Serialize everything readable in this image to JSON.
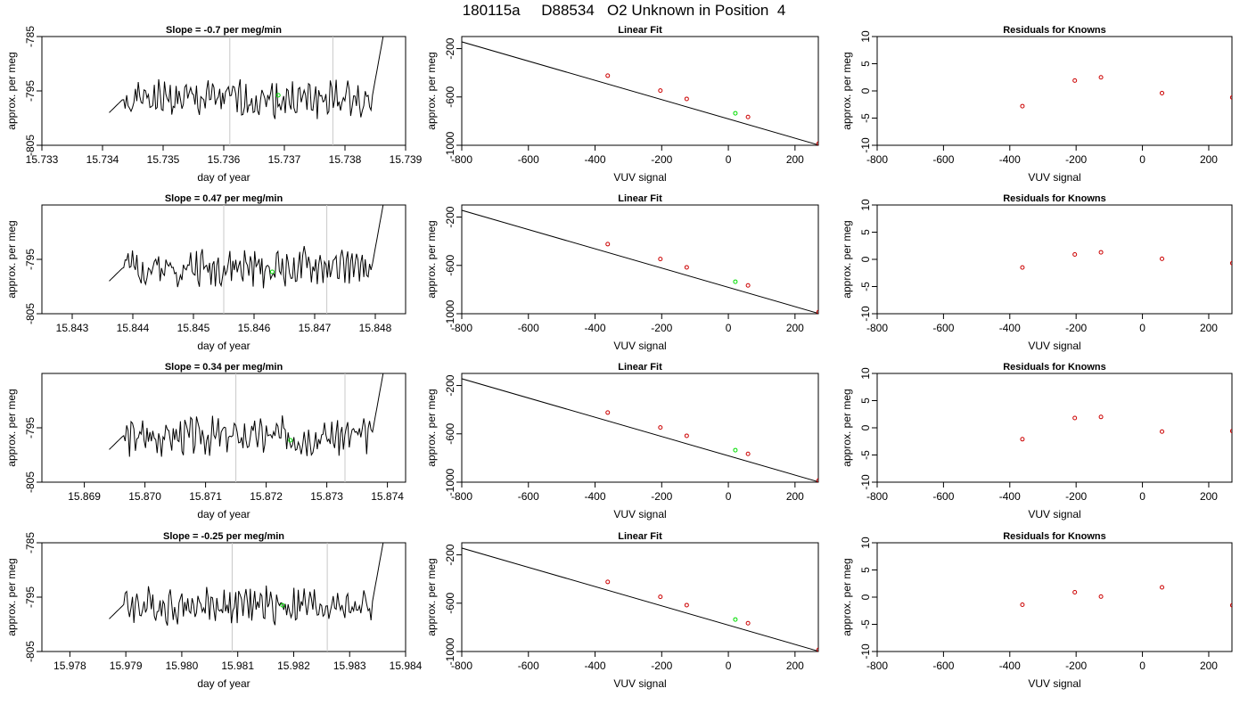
{
  "figure_title": "180115a     D88534   O2 Unknown in Position  4",
  "colors": {
    "line": "#000000",
    "vline": "#c8c8c8",
    "unknown": "#00dd00",
    "known": "#cc0000"
  },
  "chart_data": [
    {
      "type": "line",
      "title": "Slope =  -0.7  per meg/min",
      "xlabel": "day of year",
      "ylabel": "approx. per meg",
      "xlim": [
        15.733,
        15.739
      ],
      "ylim": [
        -805,
        -785
      ],
      "xticks": [
        "15.733",
        "15.734",
        "15.735",
        "15.736",
        "15.737",
        "15.738",
        "15.739"
      ],
      "yticks": [
        "-785",
        "-795",
        "-805"
      ],
      "vlines": [
        15.7361,
        15.7378
      ],
      "unknown_point": [
        15.7369,
        -795.8
      ],
      "seed": 1
    },
    {
      "type": "scatter",
      "title": "Linear Fit",
      "xlabel": "VUV signal",
      "ylabel": "approx. per meg",
      "xlim": [
        -800,
        270
      ],
      "ylim": [
        -1000,
        -100
      ],
      "xticks": [
        "-800",
        "-600",
        "-400",
        "-200",
        "0",
        "200"
      ],
      "yticks": [
        "-200",
        "-600",
        "-1000"
      ],
      "fit_line": [
        [
          -820,
          -128
        ],
        [
          270,
          -997
        ]
      ],
      "knowns": [
        [
          -362,
          -424
        ],
        [
          -204,
          -547
        ],
        [
          -125,
          -616
        ],
        [
          59,
          -766
        ],
        [
          271,
          -985
        ]
      ],
      "unknown": [
        [
          21,
          -735
        ]
      ]
    },
    {
      "type": "scatter",
      "title": "Residuals for Knowns",
      "xlabel": "VUV signal",
      "ylabel": "approx. per meg",
      "xlim": [
        -800,
        270
      ],
      "ylim": [
        -10,
        10
      ],
      "xticks": [
        "-800",
        "-600",
        "-400",
        "-200",
        "0",
        "200"
      ],
      "yticks": [
        "-10",
        "-5",
        "0",
        "5",
        "10"
      ],
      "knowns": [
        [
          -362,
          -2.8
        ],
        [
          -204,
          1.9
        ],
        [
          -125,
          2.5
        ],
        [
          59,
          -0.4
        ],
        [
          271,
          -1.2
        ]
      ]
    },
    {
      "type": "line",
      "title": "Slope =  0.47  per meg/min",
      "xlabel": "day of year",
      "ylabel": "approx. per meg",
      "xlim": [
        15.8425,
        15.8485
      ],
      "ylim": [
        -805,
        -785
      ],
      "xticks": [
        "15.843",
        "15.844",
        "15.845",
        "15.846",
        "15.847",
        "15.848"
      ],
      "yticks": [
        "-795",
        "-805"
      ],
      "vlines": [
        15.8455,
        15.8472
      ],
      "unknown_point": [
        15.8463,
        -797.3
      ],
      "seed": 2
    },
    {
      "type": "scatter",
      "title": "Linear Fit",
      "xlabel": "VUV signal",
      "ylabel": "approx. per meg",
      "xlim": [
        -800,
        270
      ],
      "ylim": [
        -1000,
        -100
      ],
      "xticks": [
        "-800",
        "-600",
        "-400",
        "-200",
        "0",
        "200"
      ],
      "yticks": [
        "-200",
        "-600",
        "-1000"
      ],
      "fit_line": [
        [
          -820,
          -128
        ],
        [
          270,
          -997
        ]
      ],
      "knowns": [
        [
          -362,
          -424
        ],
        [
          -204,
          -547
        ],
        [
          -125,
          -616
        ],
        [
          59,
          -766
        ],
        [
          271,
          -985
        ]
      ],
      "unknown": [
        [
          21,
          -735
        ]
      ]
    },
    {
      "type": "scatter",
      "title": "Residuals for Knowns",
      "xlabel": "VUV signal",
      "ylabel": "approx. per meg",
      "xlim": [
        -800,
        270
      ],
      "ylim": [
        -10,
        10
      ],
      "xticks": [
        "-800",
        "-600",
        "-400",
        "-200",
        "0",
        "200"
      ],
      "yticks": [
        "-10",
        "-5",
        "0",
        "5",
        "10"
      ],
      "knowns": [
        [
          -362,
          -1.5
        ],
        [
          -204,
          0.9
        ],
        [
          -125,
          1.3
        ],
        [
          59,
          0.1
        ],
        [
          271,
          -0.7
        ]
      ]
    },
    {
      "type": "line",
      "title": "Slope =  0.34  per meg/min",
      "xlabel": "day of year",
      "ylabel": "approx. per meg",
      "xlim": [
        15.8683,
        15.8743
      ],
      "ylim": [
        -805,
        -785
      ],
      "xticks": [
        "15.869",
        "15.870",
        "15.871",
        "15.872",
        "15.873",
        "15.874"
      ],
      "yticks": [
        "-795",
        "-805"
      ],
      "vlines": [
        15.8715,
        15.8733
      ],
      "unknown_point": [
        15.8724,
        -797.3
      ],
      "seed": 3
    },
    {
      "type": "scatter",
      "title": "Linear Fit",
      "xlabel": "VUV signal",
      "ylabel": "approx. per meg",
      "xlim": [
        -800,
        270
      ],
      "ylim": [
        -1000,
        -100
      ],
      "xticks": [
        "-800",
        "-600",
        "-400",
        "-200",
        "0",
        "200"
      ],
      "yticks": [
        "-200",
        "-600",
        "-1000"
      ],
      "fit_line": [
        [
          -820,
          -128
        ],
        [
          270,
          -997
        ]
      ],
      "knowns": [
        [
          -362,
          -424
        ],
        [
          -204,
          -547
        ],
        [
          -125,
          -616
        ],
        [
          59,
          -766
        ],
        [
          271,
          -985
        ]
      ],
      "unknown": [
        [
          21,
          -735
        ]
      ]
    },
    {
      "type": "scatter",
      "title": "Residuals for Knowns",
      "xlabel": "VUV signal",
      "ylabel": "approx. per meg",
      "xlim": [
        -800,
        270
      ],
      "ylim": [
        -10,
        10
      ],
      "xticks": [
        "-800",
        "-600",
        "-400",
        "-200",
        "0",
        "200"
      ],
      "yticks": [
        "-10",
        "-5",
        "0",
        "5",
        "10"
      ],
      "knowns": [
        [
          -362,
          -2.1
        ],
        [
          -204,
          1.8
        ],
        [
          -125,
          2.0
        ],
        [
          59,
          -0.7
        ],
        [
          271,
          -0.6
        ]
      ]
    },
    {
      "type": "line",
      "title": "Slope =  -0.25  per meg/min",
      "xlabel": "day of year",
      "ylabel": "approx. per meg",
      "xlim": [
        15.9775,
        15.984
      ],
      "ylim": [
        -805,
        -785
      ],
      "xticks": [
        "15.978",
        "15.979",
        "15.980",
        "15.981",
        "15.982",
        "15.983",
        "15.984"
      ],
      "yticks": [
        "-785",
        "-795",
        "-805"
      ],
      "vlines": [
        15.9809,
        15.9826
      ],
      "unknown_point": [
        15.9818,
        -796.5
      ],
      "seed": 4
    },
    {
      "type": "scatter",
      "title": "Linear Fit",
      "xlabel": "VUV signal",
      "ylabel": "approx. per meg",
      "xlim": [
        -800,
        270
      ],
      "ylim": [
        -1000,
        -100
      ],
      "xticks": [
        "-800",
        "-600",
        "-400",
        "-200",
        "0",
        "200"
      ],
      "yticks": [
        "-200",
        "-600",
        "-1000"
      ],
      "fit_line": [
        [
          -820,
          -128
        ],
        [
          270,
          -997
        ]
      ],
      "knowns": [
        [
          -362,
          -424
        ],
        [
          -204,
          -547
        ],
        [
          -125,
          -616
        ],
        [
          59,
          -766
        ],
        [
          271,
          -985
        ]
      ],
      "unknown": [
        [
          21,
          -735
        ]
      ]
    },
    {
      "type": "scatter",
      "title": "Residuals for Knowns",
      "xlabel": "VUV signal",
      "ylabel": "approx. per meg",
      "xlim": [
        -800,
        270
      ],
      "ylim": [
        -10,
        10
      ],
      "xticks": [
        "-800",
        "-600",
        "-400",
        "-200",
        "0",
        "200"
      ],
      "yticks": [
        "-10",
        "-5",
        "0",
        "5",
        "10"
      ],
      "knowns": [
        [
          -362,
          -1.4
        ],
        [
          -204,
          0.9
        ],
        [
          -125,
          0.1
        ],
        [
          59,
          1.8
        ],
        [
          271,
          -1.5
        ]
      ]
    }
  ]
}
